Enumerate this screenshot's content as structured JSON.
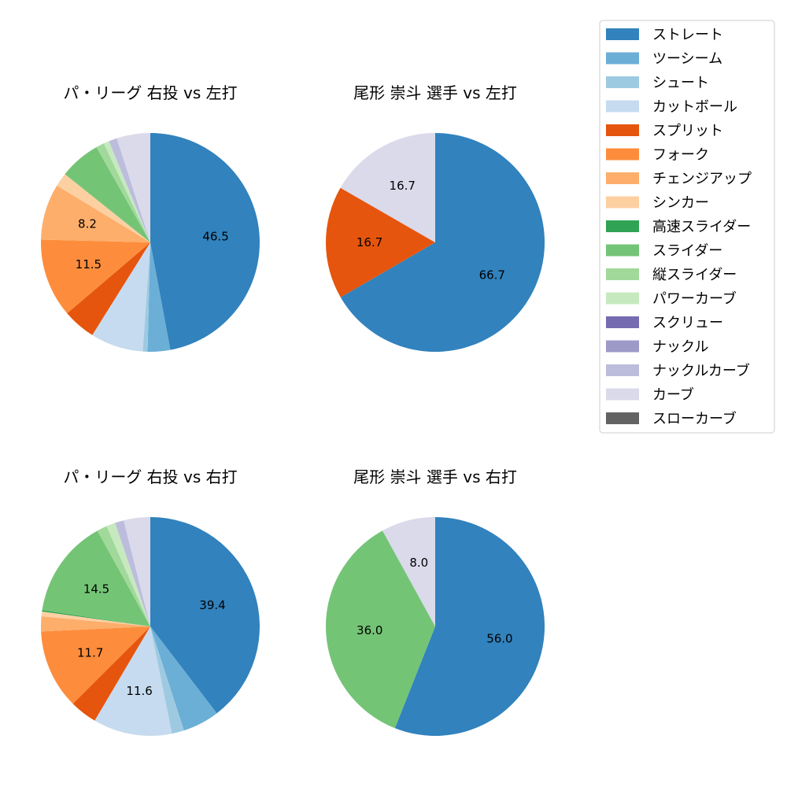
{
  "legend": {
    "items": [
      {
        "label": "ストレート",
        "color": "#3182bd"
      },
      {
        "label": "ツーシーム",
        "color": "#6baed6"
      },
      {
        "label": "シュート",
        "color": "#9ecae1"
      },
      {
        "label": "カットボール",
        "color": "#c6dbef"
      },
      {
        "label": "スプリット",
        "color": "#e6550d"
      },
      {
        "label": "フォーク",
        "color": "#fd8d3c"
      },
      {
        "label": "チェンジアップ",
        "color": "#fdae6b"
      },
      {
        "label": "シンカー",
        "color": "#fdd0a2"
      },
      {
        "label": "高速スライダー",
        "color": "#31a354"
      },
      {
        "label": "スライダー",
        "color": "#74c476"
      },
      {
        "label": "縦スライダー",
        "color": "#a1d99b"
      },
      {
        "label": "パワーカーブ",
        "color": "#c7e9c0"
      },
      {
        "label": "スクリュー",
        "color": "#756bb1"
      },
      {
        "label": "ナックル",
        "color": "#9e9ac8"
      },
      {
        "label": "ナックルカーブ",
        "color": "#bcbddc"
      },
      {
        "label": "カーブ",
        "color": "#dadaeb"
      },
      {
        "label": "スローカーブ",
        "color": "#636363"
      }
    ]
  },
  "chart_data": [
    {
      "type": "pie",
      "title": "パ・リーグ 右投 vs 左打",
      "slices": [
        {
          "label": "ストレート",
          "value": 46.5,
          "color": "#3182bd",
          "text": "46.5"
        },
        {
          "label": "ツーシーム",
          "value": 3.3,
          "color": "#6baed6",
          "text": ""
        },
        {
          "label": "シュート",
          "value": 0.7,
          "color": "#9ecae1",
          "text": ""
        },
        {
          "label": "カットボール",
          "value": 7.7,
          "color": "#c6dbef",
          "text": ""
        },
        {
          "label": "スプリット",
          "value": 4.8,
          "color": "#e6550d",
          "text": ""
        },
        {
          "label": "フォーク",
          "value": 11.5,
          "color": "#fd8d3c",
          "text": "11.5"
        },
        {
          "label": "チェンジアップ",
          "value": 8.2,
          "color": "#fdae6b",
          "text": "8.2"
        },
        {
          "label": "シンカー",
          "value": 2.0,
          "color": "#fdd0a2",
          "text": ""
        },
        {
          "label": "スライダー",
          "value": 6.0,
          "color": "#74c476",
          "text": ""
        },
        {
          "label": "縦スライダー",
          "value": 1.2,
          "color": "#a1d99b",
          "text": ""
        },
        {
          "label": "パワーカーブ",
          "value": 0.8,
          "color": "#c7e9c0",
          "text": ""
        },
        {
          "label": "ナックルカーブ",
          "value": 1.2,
          "color": "#bcbddc",
          "text": ""
        },
        {
          "label": "カーブ",
          "value": 4.9,
          "color": "#dadaeb",
          "text": ""
        }
      ]
    },
    {
      "type": "pie",
      "title": "尾形 崇斗 選手 vs 左打",
      "slices": [
        {
          "label": "ストレート",
          "value": 66.7,
          "color": "#3182bd",
          "text": "66.7"
        },
        {
          "label": "スプリット",
          "value": 16.7,
          "color": "#e6550d",
          "text": "16.7"
        },
        {
          "label": "カーブ",
          "value": 16.7,
          "color": "#dadaeb",
          "text": "16.7"
        }
      ]
    },
    {
      "type": "pie",
      "title": "パ・リーグ 右投 vs 右打",
      "slices": [
        {
          "label": "ストレート",
          "value": 39.4,
          "color": "#3182bd",
          "text": "39.4"
        },
        {
          "label": "ツーシーム",
          "value": 5.4,
          "color": "#6baed6",
          "text": ""
        },
        {
          "label": "シュート",
          "value": 1.8,
          "color": "#9ecae1",
          "text": ""
        },
        {
          "label": "カットボール",
          "value": 11.6,
          "color": "#c6dbef",
          "text": "11.6"
        },
        {
          "label": "スプリット",
          "value": 4.0,
          "color": "#e6550d",
          "text": ""
        },
        {
          "label": "フォーク",
          "value": 11.7,
          "color": "#fd8d3c",
          "text": "11.7"
        },
        {
          "label": "チェンジアップ",
          "value": 2.2,
          "color": "#fdae6b",
          "text": ""
        },
        {
          "label": "シンカー",
          "value": 0.7,
          "color": "#fdd0a2",
          "text": ""
        },
        {
          "label": "高速スライダー",
          "value": 0.2,
          "color": "#31a354",
          "text": ""
        },
        {
          "label": "スライダー",
          "value": 14.5,
          "color": "#74c476",
          "text": "14.5"
        },
        {
          "label": "縦スライダー",
          "value": 1.5,
          "color": "#a1d99b",
          "text": ""
        },
        {
          "label": "パワーカーブ",
          "value": 1.3,
          "color": "#c7e9c0",
          "text": ""
        },
        {
          "label": "ナックルカーブ",
          "value": 1.3,
          "color": "#bcbddc",
          "text": ""
        },
        {
          "label": "カーブ",
          "value": 3.9,
          "color": "#dadaeb",
          "text": ""
        }
      ]
    },
    {
      "type": "pie",
      "title": "尾形 崇斗 選手 vs 右打",
      "slices": [
        {
          "label": "ストレート",
          "value": 56.0,
          "color": "#3182bd",
          "text": "56.0"
        },
        {
          "label": "スライダー",
          "value": 36.0,
          "color": "#74c476",
          "text": "36.0"
        },
        {
          "label": "カーブ",
          "value": 8.0,
          "color": "#dadaeb",
          "text": "8.0"
        }
      ]
    }
  ]
}
